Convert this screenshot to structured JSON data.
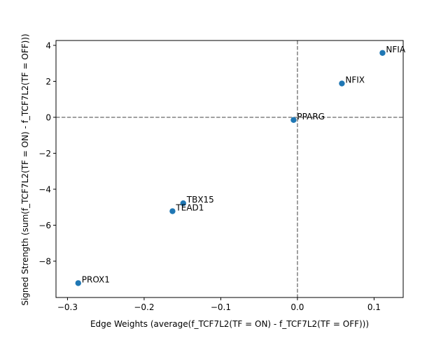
{
  "chart_data": {
    "type": "scatter",
    "title": "",
    "xlabel": "Edge Weights (average(f_TCF7L2(TF = ON) - f_TCF7L2(TF = OFF)))",
    "ylabel": "Signed Strength (sum(f_TCF7L2(TF = ON) - f_TCF7L2(TF = OFF)))",
    "xlim": [
      -0.315,
      0.138
    ],
    "ylim": [
      -10.02,
      4.27
    ],
    "xticks": [
      -0.3,
      -0.2,
      -0.1,
      0.0,
      0.1
    ],
    "xtick_labels": [
      "−0.3",
      "−0.2",
      "−0.1",
      "0.0",
      "0.1"
    ],
    "yticks": [
      -8,
      -6,
      -4,
      -2,
      0,
      2,
      4
    ],
    "ytick_labels": [
      "−8",
      "−6",
      "−4",
      "−2",
      "0",
      "2",
      "4"
    ],
    "reference_lines": {
      "x": 0,
      "y": 0,
      "style": "dashed",
      "color": "#808080"
    },
    "grid": false,
    "marker_color": "#1f77b4",
    "points": [
      {
        "label": "NFIA",
        "x": 0.111,
        "y": 3.58
      },
      {
        "label": "NFIX",
        "x": 0.058,
        "y": 1.88
      },
      {
        "label": "PPARG",
        "x": -0.005,
        "y": -0.15
      },
      {
        "label": "TBX15",
        "x": -0.149,
        "y": -4.78
      },
      {
        "label": "TEAD1",
        "x": -0.163,
        "y": -5.22
      },
      {
        "label": "PROX1",
        "x": -0.286,
        "y": -9.22
      }
    ]
  }
}
